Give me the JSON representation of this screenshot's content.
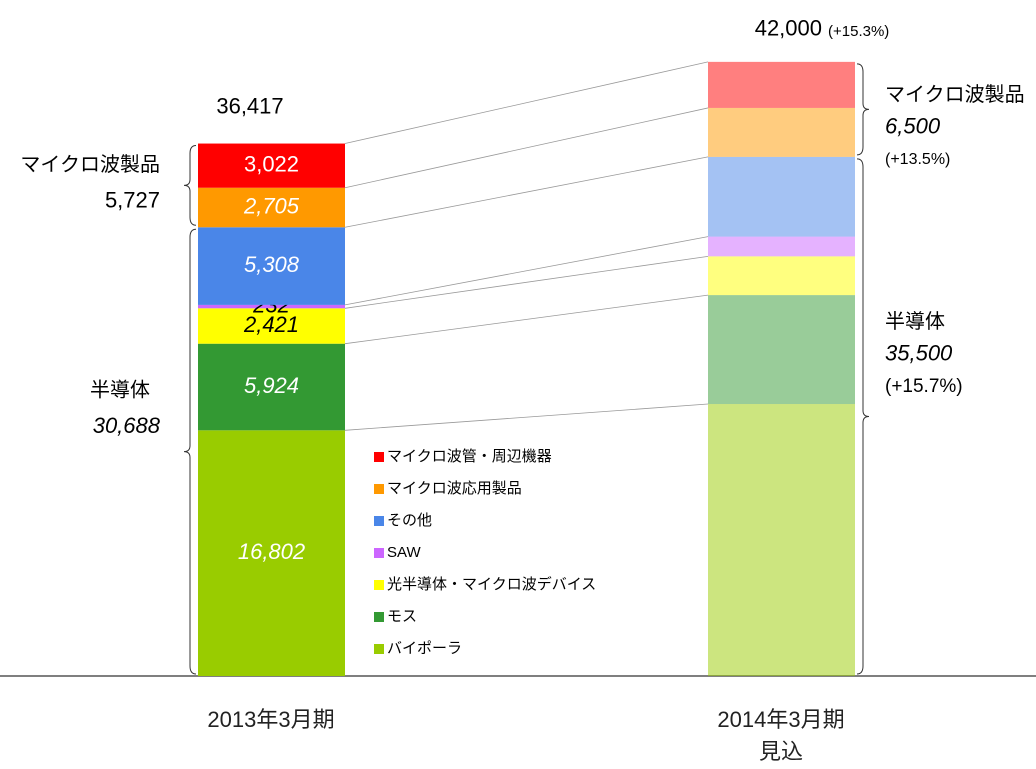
{
  "chart_data": {
    "type": "stacked_bar",
    "categories": [
      "2013年3月期",
      "2014年3月期\n見込"
    ],
    "series": [
      {
        "name": "マイクロ波管・周辺機器",
        "color": "#ff0000",
        "values": [
          3022,
          3150
        ],
        "value_labels": [
          "3,022",
          null
        ]
      },
      {
        "name": "マイクロ波応用製品",
        "color": "#ff9900",
        "values": [
          2705,
          3350
        ],
        "value_labels": [
          "2,705",
          null
        ]
      },
      {
        "name": "その他",
        "color": "#4a86e8",
        "values": [
          5308,
          5450
        ],
        "value_labels": [
          "5,308",
          null
        ]
      },
      {
        "name": "SAW",
        "color": "#cc66ff",
        "values": [
          232,
          1350
        ],
        "value_labels": [
          "232",
          null
        ]
      },
      {
        "name": "光半導体・マイクロ波デバイス",
        "color": "#ffff00",
        "values": [
          2421,
          2650
        ],
        "value_labels": [
          "2,421",
          null
        ]
      },
      {
        "name": "モス",
        "color": "#339933",
        "values": [
          5924,
          7450
        ],
        "value_labels": [
          "5,924",
          null
        ]
      },
      {
        "name": "バイポーラ",
        "color": "#99cc00",
        "values": [
          16802,
          18600
        ],
        "value_labels": [
          "16,802",
          null
        ]
      }
    ],
    "ylim": [
      0,
      45000
    ],
    "totals": [
      36417,
      42000
    ],
    "total_labels": [
      "36,417",
      "42,000"
    ],
    "total_change": "(+15.3%)",
    "groups": [
      {
        "name": "マイクロ波製品",
        "values": [
          5727,
          6500
        ],
        "value_labels": [
          "5,727",
          "6,500"
        ],
        "change": "(+13.5%)"
      },
      {
        "name": "半導体",
        "values": [
          30688,
          35500
        ],
        "value_labels": [
          "30,688",
          "35,500"
        ],
        "change": "(+15.7%)"
      }
    ]
  }
}
